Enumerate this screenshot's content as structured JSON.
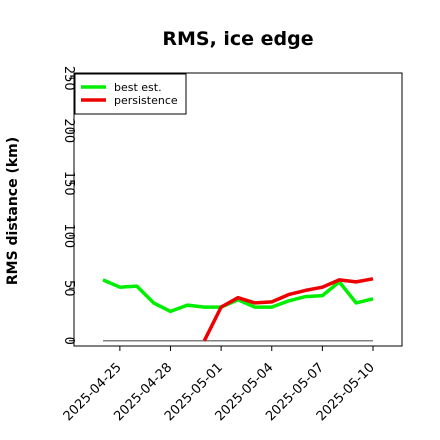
{
  "chart_data": {
    "type": "line",
    "title": "RMS, ice edge",
    "xlabel": "",
    "ylabel": "RMS distance (km)",
    "ylim": [
      -5,
      255
    ],
    "yticks": [
      0,
      50,
      100,
      150,
      200,
      250
    ],
    "x_ticks": [
      "2025-04-25",
      "2025-04-28",
      "2025-05-01",
      "2025-05-04",
      "2025-05-07",
      "2025-05-10"
    ],
    "x": [
      "2025-04-24",
      "2025-04-25",
      "2025-04-26",
      "2025-04-27",
      "2025-04-28",
      "2025-04-29",
      "2025-04-30",
      "2025-05-01",
      "2025-05-02",
      "2025-05-03",
      "2025-05-04",
      "2025-05-05",
      "2025-05-06",
      "2025-05-07",
      "2025-05-08",
      "2025-05-09",
      "2025-05-10"
    ],
    "series": [
      {
        "name": "best est.",
        "color": "#00ee00",
        "values": [
          58,
          51,
          52,
          36,
          28,
          34,
          32,
          32,
          39,
          32,
          32,
          38,
          42,
          43,
          56,
          36,
          40
        ]
      },
      {
        "name": "persistence",
        "color": "#ee0000",
        "values": [
          null,
          null,
          null,
          null,
          null,
          null,
          0,
          32,
          41,
          36,
          37,
          44,
          48,
          51,
          58,
          56,
          59
        ]
      },
      {
        "name": "",
        "color": "#808080",
        "values": [
          0,
          0,
          0,
          0,
          0,
          0,
          0,
          0,
          0,
          0,
          0,
          0,
          0,
          0,
          0,
          0,
          0
        ]
      }
    ],
    "legend": "top-left",
    "grid": false
  }
}
